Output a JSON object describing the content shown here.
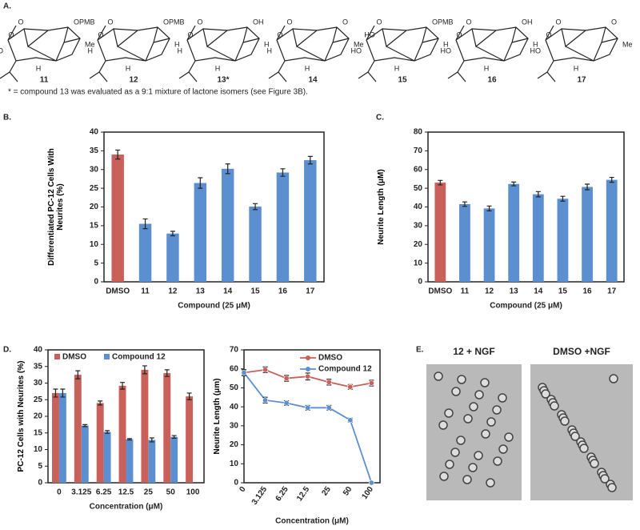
{
  "panel_a": {
    "label": "A.",
    "compounds": [
      {
        "name": "11",
        "labels": [
          "OPMB",
          "Me",
          "HO",
          "O",
          "O",
          "H"
        ]
      },
      {
        "name": "12",
        "labels": [
          "OPMB",
          "H",
          "H",
          "O",
          "O",
          "H"
        ]
      },
      {
        "name": "13*",
        "labels": [
          "OH",
          "H",
          "H",
          "O",
          "O",
          "H"
        ]
      },
      {
        "name": "14",
        "labels": [
          "O",
          "Me",
          "H",
          "O",
          "O",
          "H"
        ]
      },
      {
        "name": "15",
        "labels": [
          "OPMB",
          "H",
          "HO",
          "O",
          "HO",
          "H"
        ]
      },
      {
        "name": "16",
        "labels": [
          "OH",
          "H",
          "HO",
          "O",
          "O",
          "H"
        ]
      },
      {
        "name": "17",
        "labels": [
          "O",
          "Me",
          "HO",
          "O",
          "O",
          "H"
        ]
      }
    ],
    "footnote": "* = compound 13 was evaluated as a 9:1 mixture of lactone isomers (see Figure 3B)."
  },
  "chart_data": [
    {
      "type": "bar",
      "panel_label": "B.",
      "categories": [
        "DMSO",
        "11",
        "12",
        "13",
        "14",
        "15",
        "16",
        "17"
      ],
      "values": [
        34,
        15.5,
        12.9,
        26.4,
        30.2,
        20.1,
        29.2,
        32.5
      ],
      "errors": [
        1.2,
        1.3,
        0.6,
        1.4,
        1.3,
        0.8,
        1.0,
        1.0
      ],
      "colors": [
        "#c9605a",
        "#5b8fd0",
        "#5b8fd0",
        "#5b8fd0",
        "#5b8fd0",
        "#5b8fd0",
        "#5b8fd0",
        "#5b8fd0"
      ],
      "ylim": [
        0,
        40
      ],
      "yticks": [
        0,
        5,
        10,
        15,
        20,
        25,
        30,
        35,
        40
      ],
      "y_label": "Differentiated PC-12 Cells With Neurites (%)",
      "x_label": "Compound (25 μM)"
    },
    {
      "type": "bar",
      "panel_label": "C.",
      "categories": [
        "DMSO",
        "11",
        "12",
        "13",
        "14",
        "15",
        "16",
        "17"
      ],
      "values": [
        53,
        41.5,
        39.2,
        52.3,
        46.8,
        44.4,
        50.7,
        54.5
      ],
      "errors": [
        1.2,
        1.2,
        1.3,
        1.0,
        1.4,
        1.3,
        1.5,
        1.3
      ],
      "colors": [
        "#c9605a",
        "#5b8fd0",
        "#5b8fd0",
        "#5b8fd0",
        "#5b8fd0",
        "#5b8fd0",
        "#5b8fd0",
        "#5b8fd0"
      ],
      "ylim": [
        0,
        80
      ],
      "yticks": [
        0,
        10,
        20,
        30,
        40,
        50,
        60,
        70,
        80
      ],
      "y_label": "Neurite Length (μM)",
      "x_label": "Compound  (25 μM)"
    },
    {
      "type": "grouped_bar",
      "panel_label": "D.",
      "categories": [
        "0",
        "3.125",
        "6.25",
        "12.5",
        "25",
        "50",
        "100"
      ],
      "series": [
        {
          "name": "DMSO",
          "color": "#c9605a",
          "values": [
            27,
            32.5,
            24,
            29.2,
            34,
            33,
            26
          ],
          "errors": [
            1.2,
            1.2,
            0.6,
            1.0,
            1.2,
            1.0,
            1.0
          ]
        },
        {
          "name": "Compound 12",
          "color": "#5b8fd0",
          "values": [
            27,
            17.2,
            15.3,
            13.1,
            12.9,
            13.8,
            null
          ],
          "errors": [
            1.2,
            0.3,
            0.4,
            0.2,
            0.6,
            0.4,
            null
          ]
        }
      ],
      "ylim": [
        0,
        40
      ],
      "yticks": [
        0,
        5,
        10,
        15,
        20,
        25,
        30,
        35,
        40
      ],
      "y_label": "PC-12 Cells with Neurites (%)",
      "x_label": "Concentration (μM)"
    },
    {
      "type": "line",
      "categories": [
        "0",
        "3.125",
        "6.25",
        "12.5",
        "25",
        "50",
        "100"
      ],
      "series": [
        {
          "name": "DMSO",
          "color": "#c9605a",
          "values": [
            58,
            59.5,
            55,
            56,
            53,
            50.5,
            52.5
          ],
          "errors": [
            1.5,
            1.5,
            1.5,
            1.8,
            1.5,
            1.2,
            1.5
          ]
        },
        {
          "name": "Compound 12",
          "color": "#5b8fd0",
          "values": [
            58,
            43.5,
            42,
            39.5,
            39.5,
            33,
            0
          ],
          "errors": [
            1.5,
            1.5,
            1.2,
            1.2,
            1.2,
            1.0,
            0
          ]
        }
      ],
      "ylim": [
        0,
        70
      ],
      "yticks": [
        0,
        10,
        20,
        30,
        40,
        50,
        60,
        70
      ],
      "y_label": "Neurite Length (μm)",
      "x_label": "Concentration (μM)"
    }
  ],
  "panel_e": {
    "label": "E.",
    "images": [
      {
        "caption": "12 + NGF"
      },
      {
        "caption": "DMSO +NGF"
      }
    ]
  }
}
